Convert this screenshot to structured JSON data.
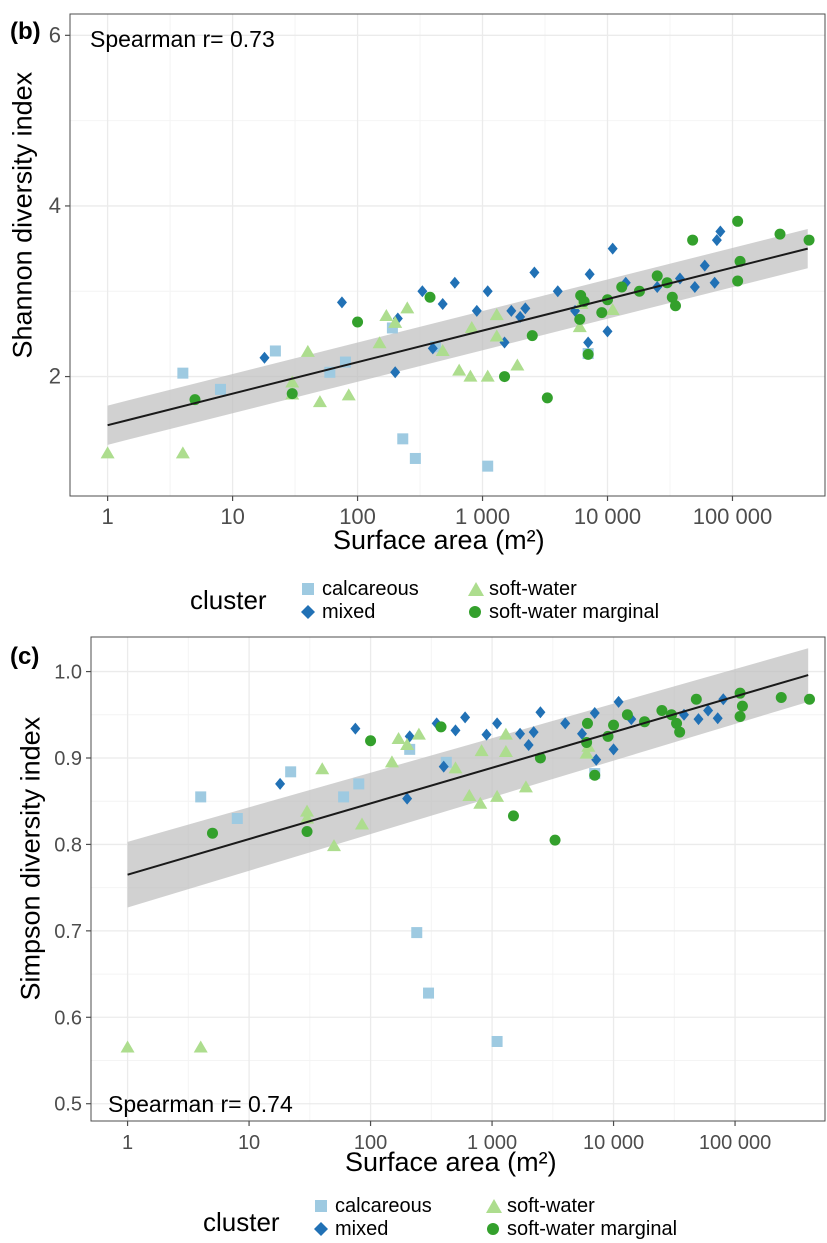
{
  "colors": {
    "calcareous": "#9ecae1",
    "mixed": "#2171b5",
    "soft-water": "#addd8e",
    "soft-water marginal": "#33a02c",
    "trend": "#1a1a1a",
    "band": "#bdbdbd",
    "grid": "#ebebeb",
    "axis": "#4d4d4d"
  },
  "legend": {
    "title": "cluster",
    "items": [
      {
        "label": "calcareous",
        "shape": "square",
        "color_key": "calcareous"
      },
      {
        "label": "soft-water",
        "shape": "triangle",
        "color_key": "soft-water"
      },
      {
        "label": "mixed",
        "shape": "diamond",
        "color_key": "mixed"
      },
      {
        "label": "soft-water marginal",
        "shape": "circle",
        "color_key": "soft-water marginal"
      }
    ]
  },
  "chart_data": [
    {
      "type": "scatter",
      "panel_label": "(b)",
      "annotation": "Spearman r= 0.73",
      "xlabel": "Surface area (m²)",
      "ylabel": "Shannon diversity index",
      "x_scale": "log10",
      "xlim": [
        0.5,
        550000
      ],
      "ylim": [
        0.6,
        6.25
      ],
      "x_ticks": [
        1,
        10,
        100,
        1000,
        10000,
        100000
      ],
      "x_tick_labels": [
        "1",
        "10",
        "100",
        "1 000",
        "10 000",
        "100 000"
      ],
      "y_ticks": [
        2,
        4,
        6
      ],
      "y_tick_labels": [
        "2",
        "4",
        "6"
      ],
      "grid": true,
      "legend_position": "bottom",
      "trend": {
        "x": [
          1,
          400000
        ],
        "y": [
          1.43,
          3.5
        ],
        "ci_lower": [
          1.2,
          3.27
        ],
        "ci_upper": [
          1.66,
          3.73
        ]
      },
      "series": [
        {
          "name": "calcareous",
          "points": [
            [
              4,
              2.04
            ],
            [
              8,
              1.85
            ],
            [
              22,
              2.3
            ],
            [
              60,
              2.05
            ],
            [
              80,
              2.17
            ],
            [
              190,
              2.57
            ],
            [
              230,
              1.27
            ],
            [
              290,
              1.04
            ],
            [
              420,
              2.35
            ],
            [
              1100,
              0.95
            ],
            [
              7000,
              2.27
            ]
          ]
        },
        {
          "name": "mixed",
          "points": [
            [
              18,
              2.22
            ],
            [
              75,
              2.87
            ],
            [
              200,
              2.05
            ],
            [
              210,
              2.68
            ],
            [
              330,
              3.0
            ],
            [
              400,
              2.33
            ],
            [
              480,
              2.85
            ],
            [
              600,
              3.1
            ],
            [
              900,
              2.77
            ],
            [
              1100,
              3.0
            ],
            [
              1500,
              2.4
            ],
            [
              1700,
              2.77
            ],
            [
              2000,
              2.7
            ],
            [
              2200,
              2.8
            ],
            [
              2600,
              3.22
            ],
            [
              4000,
              3.0
            ],
            [
              5500,
              2.77
            ],
            [
              7000,
              2.4
            ],
            [
              7200,
              3.2
            ],
            [
              10000,
              2.53
            ],
            [
              11000,
              3.5
            ],
            [
              14000,
              3.1
            ],
            [
              25000,
              3.05
            ],
            [
              38000,
              3.15
            ],
            [
              50000,
              3.05
            ],
            [
              60000,
              3.3
            ],
            [
              72000,
              3.1
            ],
            [
              75000,
              3.6
            ],
            [
              80000,
              3.7
            ]
          ]
        },
        {
          "name": "soft-water",
          "points": [
            [
              1,
              1.1
            ],
            [
              4,
              1.1
            ],
            [
              30,
              1.79
            ],
            [
              30,
              1.93
            ],
            [
              40,
              2.29
            ],
            [
              50,
              1.7
            ],
            [
              85,
              1.78
            ],
            [
              150,
              2.39
            ],
            [
              170,
              2.71
            ],
            [
              200,
              2.63
            ],
            [
              250,
              2.8
            ],
            [
              480,
              2.3
            ],
            [
              820,
              2.57
            ],
            [
              650,
              2.07
            ],
            [
              800,
              2.0
            ],
            [
              1100,
              2.0
            ],
            [
              1300,
              2.47
            ],
            [
              1300,
              2.72
            ],
            [
              1900,
              2.13
            ],
            [
              6000,
              2.58
            ],
            [
              6200,
              2.85
            ],
            [
              11000,
              2.78
            ]
          ]
        },
        {
          "name": "soft-water marginal",
          "points": [
            [
              5,
              1.73
            ],
            [
              30,
              1.8
            ],
            [
              100,
              2.64
            ],
            [
              380,
              2.93
            ],
            [
              1500,
              2.0
            ],
            [
              2500,
              2.48
            ],
            [
              3300,
              1.75
            ],
            [
              6000,
              2.67
            ],
            [
              6100,
              2.95
            ],
            [
              6500,
              2.88
            ],
            [
              7000,
              2.26
            ],
            [
              9000,
              2.75
            ],
            [
              10000,
              2.9
            ],
            [
              13000,
              3.05
            ],
            [
              18000,
              3.0
            ],
            [
              25000,
              3.18
            ],
            [
              30000,
              3.1
            ],
            [
              33000,
              2.93
            ],
            [
              35000,
              2.83
            ],
            [
              48000,
              3.6
            ],
            [
              110000,
              3.82
            ],
            [
              110000,
              3.12
            ],
            [
              115000,
              3.35
            ],
            [
              240000,
              3.67
            ],
            [
              410000,
              3.6
            ]
          ]
        }
      ]
    },
    {
      "type": "scatter",
      "panel_label": "(c)",
      "annotation": "Spearman r= 0.74",
      "xlabel": "Surface area (m²)",
      "ylabel": "Simpson diversity index",
      "x_scale": "log10",
      "xlim": [
        0.5,
        550000
      ],
      "ylim": [
        0.48,
        1.04
      ],
      "x_ticks": [
        1,
        10,
        100,
        1000,
        10000,
        100000
      ],
      "x_tick_labels": [
        "1",
        "10",
        "100",
        "1 000",
        "10 000",
        "100 000"
      ],
      "y_ticks": [
        0.5,
        0.6,
        0.7,
        0.8,
        0.9,
        1.0
      ],
      "y_tick_labels": [
        "0.5",
        "0.6",
        "0.7",
        "0.8",
        "0.9",
        "1.0"
      ],
      "grid": true,
      "legend_position": "bottom",
      "trend": {
        "x": [
          1,
          400000
        ],
        "y": [
          0.765,
          0.996
        ],
        "ci_lower": [
          0.727,
          0.965
        ],
        "ci_upper": [
          0.803,
          1.027
        ]
      },
      "series": [
        {
          "name": "calcareous",
          "points": [
            [
              4,
              0.855
            ],
            [
              8,
              0.83
            ],
            [
              22,
              0.884
            ],
            [
              60,
              0.855
            ],
            [
              80,
              0.87
            ],
            [
              210,
              0.91
            ],
            [
              240,
              0.698
            ],
            [
              300,
              0.628
            ],
            [
              420,
              0.895
            ],
            [
              1100,
              0.572
            ],
            [
              7000,
              0.882
            ]
          ]
        },
        {
          "name": "mixed",
          "points": [
            [
              18,
              0.87
            ],
            [
              75,
              0.934
            ],
            [
              200,
              0.853
            ],
            [
              210,
              0.925
            ],
            [
              350,
              0.94
            ],
            [
              400,
              0.89
            ],
            [
              500,
              0.932
            ],
            [
              600,
              0.947
            ],
            [
              900,
              0.927
            ],
            [
              1100,
              0.94
            ],
            [
              1700,
              0.928
            ],
            [
              2000,
              0.915
            ],
            [
              2200,
              0.93
            ],
            [
              2500,
              0.953
            ],
            [
              4000,
              0.94
            ],
            [
              5500,
              0.928
            ],
            [
              7000,
              0.952
            ],
            [
              7200,
              0.898
            ],
            [
              10000,
              0.91
            ],
            [
              11000,
              0.965
            ],
            [
              14000,
              0.945
            ],
            [
              38000,
              0.95
            ],
            [
              50000,
              0.945
            ],
            [
              60000,
              0.955
            ],
            [
              72000,
              0.946
            ],
            [
              80000,
              0.968
            ]
          ]
        },
        {
          "name": "soft-water",
          "points": [
            [
              1,
              0.565
            ],
            [
              4,
              0.565
            ],
            [
              30,
              0.838
            ],
            [
              30,
              0.83
            ],
            [
              40,
              0.887
            ],
            [
              50,
              0.798
            ],
            [
              85,
              0.823
            ],
            [
              150,
              0.895
            ],
            [
              170,
              0.922
            ],
            [
              200,
              0.915
            ],
            [
              250,
              0.927
            ],
            [
              500,
              0.888
            ],
            [
              820,
              0.908
            ],
            [
              650,
              0.856
            ],
            [
              800,
              0.847
            ],
            [
              1100,
              0.855
            ],
            [
              1300,
              0.907
            ],
            [
              1300,
              0.927
            ],
            [
              1900,
              0.866
            ],
            [
              6000,
              0.905
            ],
            [
              6200,
              0.913
            ]
          ]
        },
        {
          "name": "soft-water marginal",
          "points": [
            [
              5,
              0.813
            ],
            [
              30,
              0.815
            ],
            [
              100,
              0.92
            ],
            [
              380,
              0.936
            ],
            [
              1500,
              0.833
            ],
            [
              2500,
              0.9
            ],
            [
              3300,
              0.805
            ],
            [
              6000,
              0.918
            ],
            [
              6100,
              0.94
            ],
            [
              7000,
              0.88
            ],
            [
              9000,
              0.925
            ],
            [
              10000,
              0.938
            ],
            [
              13000,
              0.95
            ],
            [
              18000,
              0.942
            ],
            [
              25000,
              0.955
            ],
            [
              30000,
              0.95
            ],
            [
              33000,
              0.94
            ],
            [
              35000,
              0.93
            ],
            [
              48000,
              0.968
            ],
            [
              110000,
              0.975
            ],
            [
              110000,
              0.948
            ],
            [
              115000,
              0.96
            ],
            [
              240000,
              0.97
            ],
            [
              410000,
              0.968
            ]
          ]
        }
      ]
    }
  ]
}
